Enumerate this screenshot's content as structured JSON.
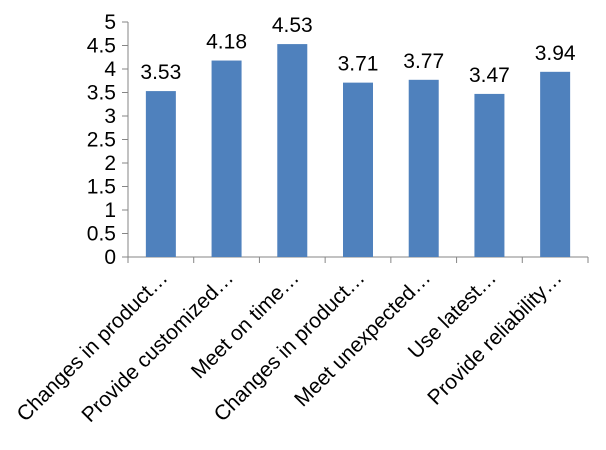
{
  "chart_data": {
    "type": "bar",
    "categories": [
      "Changes in product…",
      "Provide customized…",
      "Meet on time…",
      "Changes in product…",
      "Meet unexpected…",
      "Use latest…",
      "Provide reliability…"
    ],
    "values": [
      3.53,
      4.18,
      4.53,
      3.71,
      3.77,
      3.47,
      3.94
    ],
    "data_labels": [
      "3.53",
      "4.18",
      "4.53",
      "3.71",
      "3.77",
      "3.47",
      "3.94"
    ],
    "y_ticks": [
      "0",
      "0.5",
      "1",
      "1.5",
      "2",
      "2.5",
      "3",
      "3.5",
      "4",
      "4.5",
      "5"
    ],
    "ylim": [
      0,
      5
    ],
    "bar_color": "#4F81BD",
    "grid": false,
    "legend": "none",
    "title": "",
    "xlabel": "",
    "ylabel": ""
  }
}
